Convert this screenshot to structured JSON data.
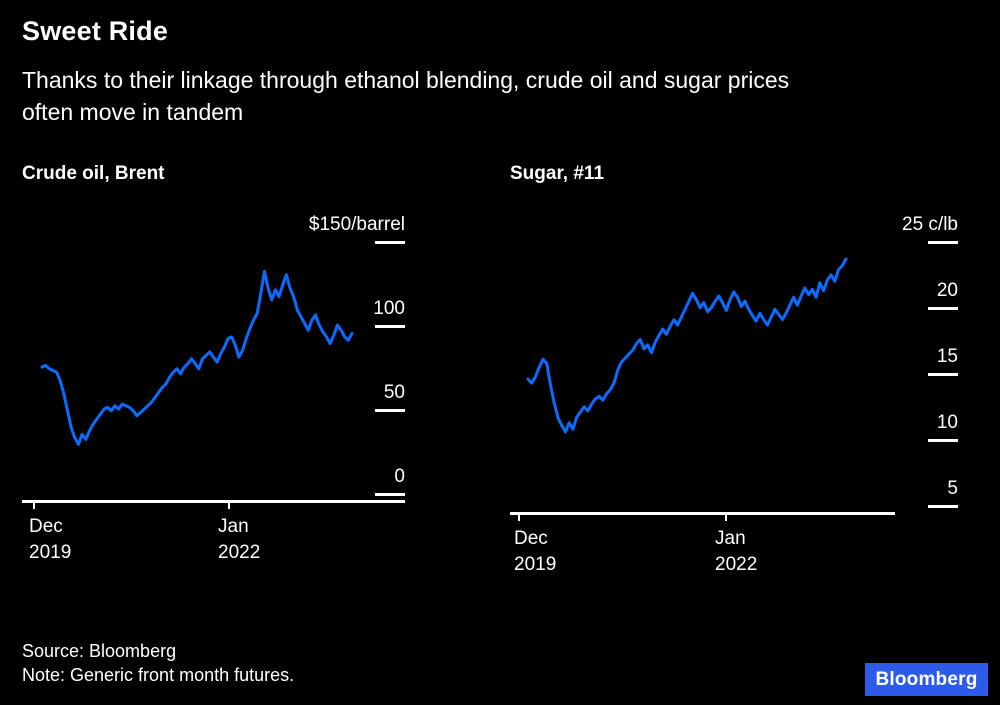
{
  "colors": {
    "background": "#000000",
    "text": "#ffffff",
    "line": "#0a6cff",
    "badge": "#2d5be9",
    "axis": "#ffffff"
  },
  "header": {
    "title": "Sweet Ride",
    "subtitle_lines": [
      "Thanks to their linkage through ethanol blending, crude oil and sugar prices",
      "often move in tandem"
    ]
  },
  "footer": {
    "source": "Source: Bloomberg",
    "note": "Note: Generic front month futures.",
    "logo": "Bloomberg"
  },
  "chart_data": [
    {
      "type": "line",
      "title": "Crude oil, Brent",
      "ylabel": "$/barrel",
      "ylim": [
        0,
        150
      ],
      "grid": false,
      "legend": "none",
      "y_ticks": [
        {
          "value": 150,
          "label": "$150/barrel"
        },
        {
          "value": 100,
          "label": "100"
        },
        {
          "value": 50,
          "label": "50"
        },
        {
          "value": 0,
          "label": "0"
        }
      ],
      "x_ticks": [
        {
          "label": "Dec\n2019"
        },
        {
          "label": "Jan\n2022"
        }
      ],
      "values": [
        66,
        67,
        65,
        64,
        63,
        58,
        50,
        40,
        30,
        24,
        20,
        26,
        23,
        28,
        32,
        35,
        38,
        41,
        42,
        40,
        43,
        41,
        44,
        43,
        42,
        40,
        37,
        39,
        41,
        43,
        45,
        48,
        51,
        54,
        56,
        60,
        63,
        65,
        62,
        66,
        68,
        71,
        68,
        65,
        71,
        73,
        75,
        72,
        69,
        74,
        78,
        83,
        84,
        79,
        72,
        76,
        83,
        89,
        94,
        98,
        110,
        123,
        113,
        106,
        112,
        108,
        115,
        121,
        113,
        108,
        100,
        96,
        92,
        88,
        94,
        97,
        91,
        87,
        84,
        80,
        85,
        91,
        88,
        84,
        82,
        86
      ]
    },
    {
      "type": "line",
      "title": "Sugar, #11",
      "ylabel": "c/lb",
      "ylim": [
        5,
        25
      ],
      "grid": false,
      "legend": "none",
      "y_ticks": [
        {
          "value": 25,
          "label": "25 c/lb"
        },
        {
          "value": 20,
          "label": "20"
        },
        {
          "value": 15,
          "label": "15"
        },
        {
          "value": 10,
          "label": "10"
        },
        {
          "value": 5,
          "label": "5"
        }
      ],
      "x_ticks": [
        {
          "label": "Dec\n2019"
        },
        {
          "label": "Jan\n2022"
        }
      ],
      "values": [
        13.4,
        13.1,
        13.6,
        14.3,
        14.9,
        14.6,
        13.0,
        11.6,
        10.5,
        9.9,
        9.4,
        10.1,
        9.6,
        10.5,
        10.9,
        11.3,
        11.0,
        11.5,
        11.9,
        12.1,
        11.8,
        12.3,
        12.6,
        13.1,
        14.1,
        14.7,
        15.0,
        15.3,
        15.6,
        16.1,
        16.4,
        15.7,
        16.0,
        15.4,
        16.2,
        16.7,
        17.2,
        16.8,
        17.4,
        17.9,
        17.5,
        18.1,
        18.7,
        19.3,
        19.9,
        19.4,
        18.8,
        19.2,
        18.5,
        18.8,
        19.3,
        19.7,
        19.2,
        18.6,
        19.4,
        20.0,
        19.6,
        18.9,
        19.3,
        18.7,
        18.2,
        17.8,
        18.4,
        17.9,
        17.5,
        18.1,
        18.7,
        18.3,
        17.9,
        18.4,
        19.0,
        19.6,
        19.0,
        19.7,
        20.3,
        19.8,
        20.2,
        19.6,
        20.7,
        20.1,
        20.9,
        21.3,
        20.8,
        21.7,
        22.0,
        22.5
      ]
    }
  ]
}
